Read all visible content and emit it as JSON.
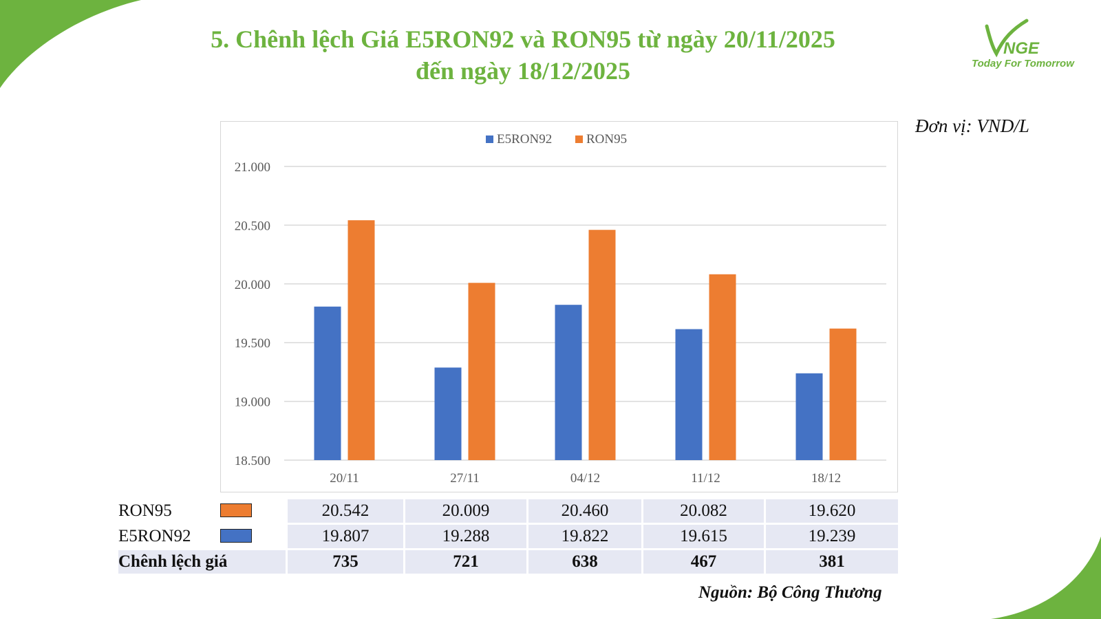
{
  "title_line1": "5. Chênh lệch Giá E5RON92 và RON95 từ ngày 20/11/2025",
  "title_line2": "đến ngày 18/12/2025",
  "logo": {
    "text": "VNGE",
    "tagline": "Today For Tomorrow"
  },
  "unit": "Đơn vị: VND/L",
  "source": "Nguồn: Bộ Công Thương",
  "colors": {
    "brand_green": "#6db33f",
    "e5ron92": "#4472c4",
    "ron95": "#ed7d31",
    "table_bg": "#e6e8f3"
  },
  "chart_data": {
    "type": "bar",
    "categories": [
      "20/11",
      "27/11",
      "04/12",
      "11/12",
      "18/12"
    ],
    "series": [
      {
        "name": "E5RON92",
        "values": [
          19807,
          19288,
          19822,
          19615,
          19239
        ]
      },
      {
        "name": "RON95",
        "values": [
          20542,
          20009,
          20460,
          20082,
          19620
        ]
      }
    ],
    "ylim": [
      18500,
      21000
    ],
    "yticks": [
      21000,
      20500,
      20000,
      19500,
      19000,
      18500
    ],
    "ytick_labels": [
      "21.000",
      "20.500",
      "20.000",
      "19.500",
      "19.000",
      "18.500"
    ],
    "grid": true,
    "legend": "top-center"
  },
  "table": {
    "rows": [
      {
        "label": "RON95",
        "swatch": "ron95",
        "values": [
          "20.542",
          "20.009",
          "20.460",
          "20.082",
          "19.620"
        ]
      },
      {
        "label": "E5RON92",
        "swatch": "e5ron92",
        "values": [
          "19.807",
          "19.288",
          "19.822",
          "19.615",
          "19.239"
        ]
      },
      {
        "label": "Chênh lệch giá",
        "values": [
          "735",
          "721",
          "638",
          "467",
          "381"
        ]
      }
    ]
  }
}
